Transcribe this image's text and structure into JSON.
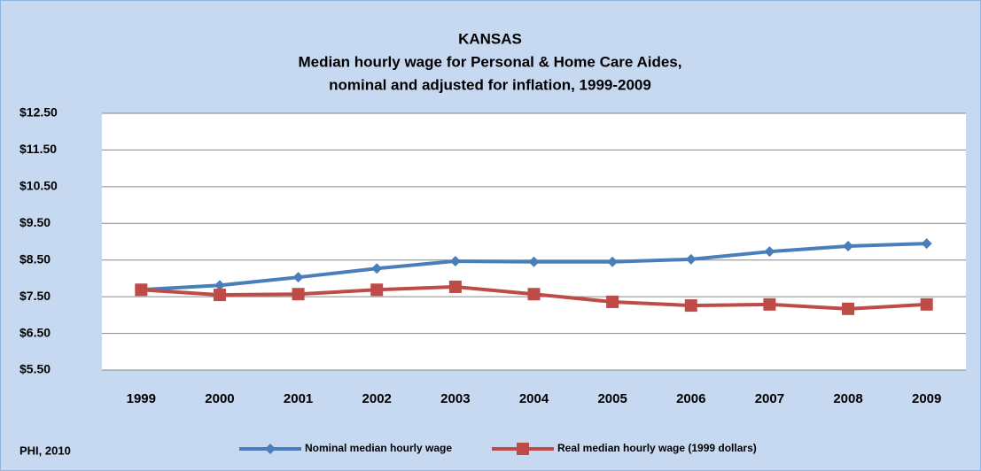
{
  "chart_data": {
    "type": "line",
    "title": [
      "KANSAS",
      "Median hourly wage for Personal & Home Care Aides,",
      "nominal and adjusted for inflation, 1999-2009"
    ],
    "source": "PHI, 2010",
    "categories": [
      "1999",
      "2000",
      "2001",
      "2002",
      "2003",
      "2004",
      "2005",
      "2006",
      "2007",
      "2008",
      "2009"
    ],
    "series": [
      {
        "name": "Nominal median hourly wage",
        "color": "#4a7ebb",
        "marker": "diamond",
        "values": [
          7.69,
          7.81,
          8.03,
          8.27,
          8.47,
          8.45,
          8.45,
          8.52,
          8.73,
          8.88,
          8.95
        ]
      },
      {
        "name": "Real median hourly wage (1999 dollars)",
        "color": "#be4b48",
        "marker": "square",
        "values": [
          7.69,
          7.55,
          7.57,
          7.69,
          7.77,
          7.57,
          7.36,
          7.26,
          7.29,
          7.17,
          7.29
        ]
      }
    ],
    "ylim": [
      5.5,
      12.5
    ],
    "yticks": [
      {
        "value": 5.5,
        "label": "$5.50"
      },
      {
        "value": 6.5,
        "label": "$6.50"
      },
      {
        "value": 7.5,
        "label": "$7.50"
      },
      {
        "value": 8.5,
        "label": "$8.50"
      },
      {
        "value": 9.5,
        "label": "$9.50"
      },
      {
        "value": 10.5,
        "label": "$10.50"
      },
      {
        "value": 11.5,
        "label": "$11.50"
      },
      {
        "value": 12.5,
        "label": "$12.50"
      }
    ],
    "grid": true,
    "legend": "bottom"
  }
}
